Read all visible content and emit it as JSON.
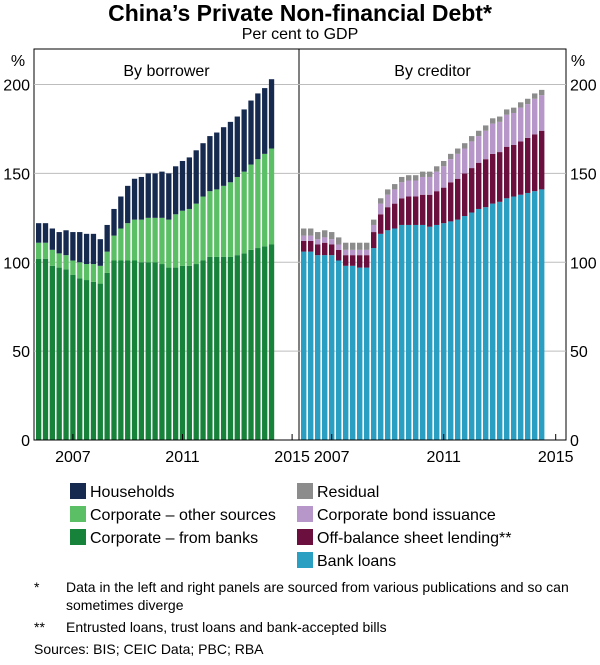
{
  "title": "China’s Private Non-financial Debt*",
  "subtitle": "Per cent to GDP",
  "unit_label": "%",
  "panels": {
    "left_title": "By borrower",
    "right_title": "By creditor"
  },
  "axis": {
    "yticks": [
      "0",
      "50",
      "100",
      "150",
      "200"
    ],
    "xticks": [
      "2007",
      "2011",
      "2015"
    ]
  },
  "legend": [
    {
      "label": "Households",
      "color": "#16294f"
    },
    {
      "label": "Corporate – other sources",
      "color": "#5bbf66"
    },
    {
      "label": "Corporate – from banks",
      "color": "#16823a"
    },
    {
      "label": "Residual",
      "color": "#8c8c8c"
    },
    {
      "label": "Corporate bond issuance",
      "color": "#b797c9"
    },
    {
      "label": "Off-balance sheet lending**",
      "color": "#6a0f3e"
    },
    {
      "label": "Bank loans",
      "color": "#2a9fc1"
    }
  ],
  "notes": [
    {
      "mark": "*",
      "text": "Data in the left and right panels are sourced from various publications and so can sometimes diverge"
    },
    {
      "mark": "**",
      "text": "Entrusted loans, trust loans and bank-accepted bills"
    }
  ],
  "sources": "Sources:  BIS; CEIC Data; PBC; RBA",
  "chart_data": [
    {
      "type": "bar",
      "stacked": true,
      "title": "By borrower",
      "xlabel": "",
      "ylabel": "%",
      "ylim": [
        0,
        220
      ],
      "x_start_year": 2005.75,
      "x_step_years": 0.25,
      "xticks": [
        2007,
        2011,
        2015
      ],
      "series": [
        {
          "name": "Corporate – from banks",
          "color": "#16823a",
          "values": [
            102,
            102,
            98,
            97,
            96,
            93,
            91,
            90,
            89,
            88,
            94,
            101,
            101,
            101,
            101,
            100,
            100,
            100,
            99,
            97,
            97,
            98,
            98,
            99,
            101,
            103,
            103,
            103,
            103,
            104,
            105,
            107,
            108,
            109,
            110
          ]
        },
        {
          "name": "Corporate – other sources",
          "color": "#5bbf66",
          "values": [
            9,
            9,
            9,
            8,
            8,
            8,
            9,
            9,
            10,
            10,
            12,
            14,
            18,
            21,
            23,
            24,
            25,
            25,
            26,
            27,
            30,
            31,
            32,
            34,
            36,
            37,
            38,
            40,
            42,
            44,
            46,
            48,
            50,
            52,
            54
          ]
        },
        {
          "name": "Households",
          "color": "#16294f",
          "values": [
            11,
            11,
            12,
            12,
            14,
            16,
            17,
            17,
            17,
            15,
            15,
            15,
            18,
            21,
            23,
            24,
            25,
            25,
            26,
            26,
            27,
            28,
            29,
            30,
            30,
            31,
            32,
            33,
            34,
            34,
            35,
            36,
            37,
            37,
            39
          ]
        }
      ]
    },
    {
      "type": "bar",
      "stacked": true,
      "title": "By creditor",
      "xlabel": "",
      "ylabel": "%",
      "ylim": [
        0,
        220
      ],
      "x_start_year": 2006.0,
      "x_step_years": 0.25,
      "xticks": [
        2007,
        2011,
        2015
      ],
      "series": [
        {
          "name": "Bank loans",
          "color": "#2a9fc1",
          "values": [
            106,
            106,
            104,
            104,
            104,
            101,
            98,
            98,
            97,
            97,
            108,
            116,
            118,
            119,
            121,
            121,
            121,
            121,
            120,
            121,
            122,
            123,
            124,
            126,
            128,
            130,
            131,
            133,
            134,
            136,
            137,
            138,
            139,
            140,
            141
          ]
        },
        {
          "name": "Off-balance sheet lending**",
          "color": "#6a0f3e",
          "values": [
            6,
            6,
            6,
            7,
            6,
            6,
            6,
            6,
            7,
            7,
            9,
            11,
            13,
            14,
            15,
            16,
            16,
            17,
            18,
            19,
            20,
            22,
            23,
            24,
            25,
            26,
            27,
            28,
            28,
            29,
            29,
            30,
            31,
            32,
            33
          ]
        },
        {
          "name": "Corporate bond issuance",
          "color": "#b797c9",
          "values": [
            3,
            3,
            3,
            3,
            3,
            3,
            3,
            3,
            3,
            3,
            4,
            6,
            7,
            8,
            9,
            9,
            9,
            10,
            10,
            11,
            12,
            13,
            14,
            14,
            15,
            15,
            16,
            17,
            17,
            18,
            18,
            19,
            19,
            20,
            20
          ]
        },
        {
          "name": "Residual",
          "color": "#8c8c8c",
          "values": [
            4,
            4,
            4,
            4,
            4,
            4,
            4,
            4,
            4,
            4,
            3,
            3,
            3,
            3,
            3,
            3,
            3,
            3,
            3,
            3,
            3,
            3,
            3,
            3,
            3,
            3,
            3,
            3,
            3,
            3,
            3,
            3,
            3,
            3,
            3
          ]
        }
      ]
    }
  ]
}
